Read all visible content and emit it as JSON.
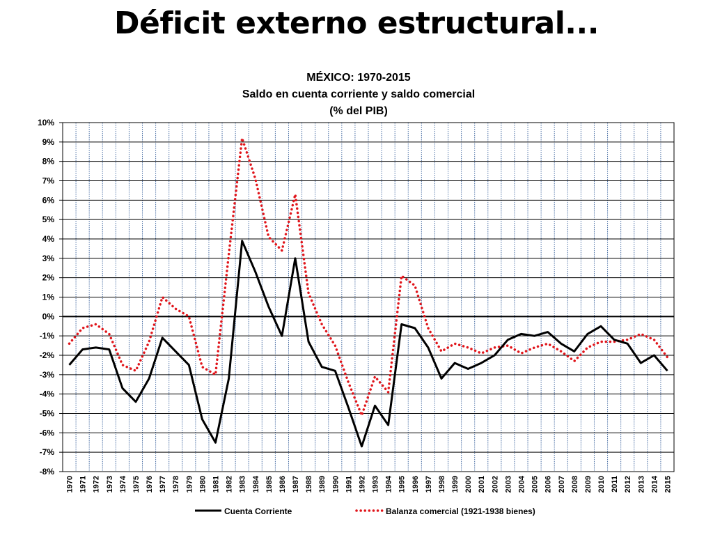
{
  "slide": {
    "title": "Déficit externo estructural..."
  },
  "chart_data": {
    "type": "line",
    "title": [
      "MÉXICO: 1970-2015",
      "Saldo en cuenta corriente y saldo comercial",
      "(% del PIB)"
    ],
    "x": [
      1970,
      1971,
      1972,
      1973,
      1974,
      1975,
      1976,
      1977,
      1978,
      1979,
      1980,
      1981,
      1982,
      1983,
      1984,
      1985,
      1986,
      1987,
      1988,
      1989,
      1990,
      1991,
      1992,
      1993,
      1994,
      1995,
      1996,
      1997,
      1998,
      1999,
      2000,
      2001,
      2002,
      2003,
      2004,
      2005,
      2006,
      2007,
      2008,
      2009,
      2010,
      2011,
      2012,
      2013,
      2014,
      2015
    ],
    "ylim": [
      -8,
      10
    ],
    "yticks": [
      -8,
      -7,
      -6,
      -5,
      -4,
      -3,
      -2,
      -1,
      0,
      1,
      2,
      3,
      4,
      5,
      6,
      7,
      8,
      9,
      10
    ],
    "ytick_labels": [
      "-8%",
      "-7%",
      "-6%",
      "-5%",
      "-4%",
      "-3%",
      "-2%",
      "-1%",
      "0%",
      "1%",
      "2%",
      "3%",
      "4%",
      "5%",
      "6%",
      "7%",
      "8%",
      "9%",
      "10%"
    ],
    "grid": true,
    "legend_position": "bottom",
    "series": [
      {
        "name": "Cuenta Corriente",
        "color": "#000000",
        "style": "solid",
        "values": [
          -2.5,
          -1.7,
          -1.6,
          -1.7,
          -3.7,
          -4.4,
          -3.2,
          -1.1,
          -1.8,
          -2.5,
          -5.3,
          -6.5,
          -3.2,
          3.9,
          2.3,
          0.5,
          -1.0,
          3.0,
          -1.3,
          -2.6,
          -2.8,
          -4.7,
          -6.7,
          -4.6,
          -5.6,
          -0.4,
          -0.6,
          -1.6,
          -3.2,
          -2.4,
          -2.7,
          -2.4,
          -2.0,
          -1.2,
          -0.9,
          -1.0,
          -0.8,
          -1.4,
          -1.8,
          -0.9,
          -0.5,
          -1.2,
          -1.4,
          -2.4,
          -2.0,
          -2.8
        ]
      },
      {
        "name": "Balanza comercial (1921-1938 bienes)",
        "color": "#e0151b",
        "style": "dotted",
        "values": [
          -1.4,
          -0.6,
          -0.4,
          -0.9,
          -2.5,
          -2.8,
          -1.3,
          1.0,
          0.4,
          0.0,
          -2.6,
          -3.0,
          3.2,
          9.2,
          7.1,
          4.1,
          3.4,
          6.3,
          1.2,
          -0.4,
          -1.5,
          -3.4,
          -5.1,
          -3.1,
          -3.9,
          2.1,
          1.6,
          -0.6,
          -1.8,
          -1.4,
          -1.6,
          -1.9,
          -1.6,
          -1.5,
          -1.9,
          -1.6,
          -1.4,
          -1.8,
          -2.3,
          -1.6,
          -1.3,
          -1.3,
          -1.2,
          -0.9,
          -1.2,
          -2.1
        ]
      }
    ]
  }
}
